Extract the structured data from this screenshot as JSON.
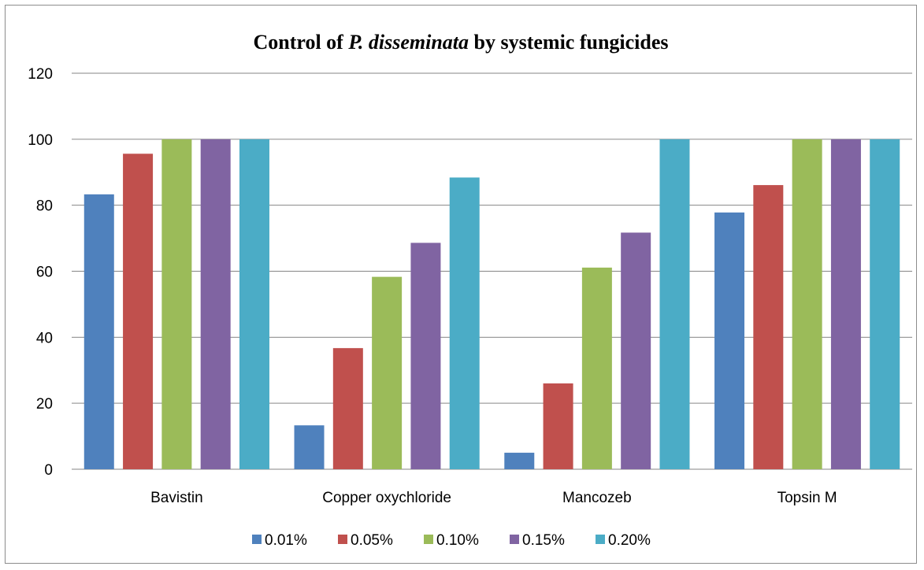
{
  "chart_data": {
    "type": "bar",
    "title_prefix": "Control of ",
    "title_italic": "P. disseminata",
    "title_suffix": " by systemic fungicides",
    "xlabel": "",
    "ylabel": "",
    "categories": [
      "Bavistin",
      "Copper oxychloride",
      "Mancozeb",
      "Topsin M"
    ],
    "series": [
      {
        "name": "0.01%",
        "color": "#4f81bd",
        "values": [
          83.3,
          13.3,
          5,
          77.8
        ]
      },
      {
        "name": "0.05%",
        "color": "#c0504d",
        "values": [
          95.6,
          36.7,
          26,
          86.1
        ]
      },
      {
        "name": "0.10%",
        "color": "#9bbb59",
        "values": [
          100,
          58.3,
          61.1,
          100
        ]
      },
      {
        "name": "0.15%",
        "color": "#8064a2",
        "values": [
          100,
          68.6,
          71.7,
          100
        ]
      },
      {
        "name": "0.20%",
        "color": "#4bacc6",
        "values": [
          100,
          88.4,
          100,
          100
        ]
      }
    ],
    "ylim": [
      0,
      120
    ],
    "yticks": [
      0,
      20,
      40,
      60,
      80,
      100,
      120
    ],
    "grid": true,
    "legend_position": "bottom"
  }
}
